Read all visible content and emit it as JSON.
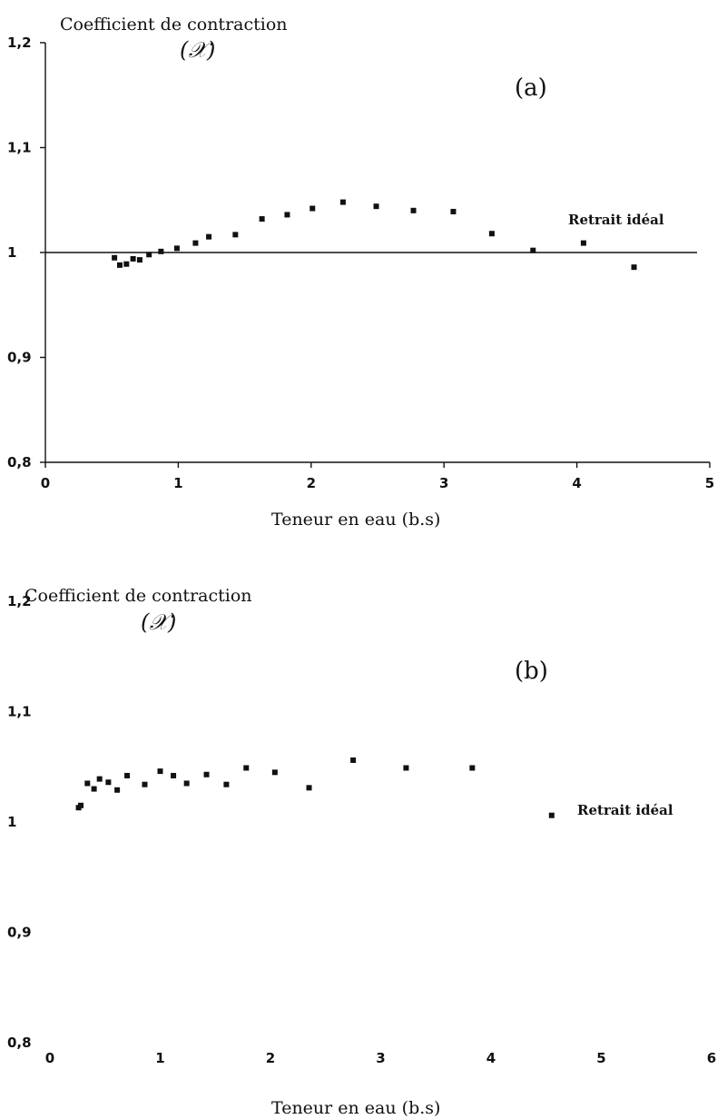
{
  "chart_data": [
    {
      "type": "scatter",
      "panel_label": "(a)",
      "ylabel": "Coefficient de contraction",
      "ylabel_symbol": "(𝒳)",
      "xlabel": "Teneur en eau (b.s)",
      "xlim": [
        0,
        5
      ],
      "ylim": [
        0.8,
        1.2
      ],
      "x_ticks": [
        0,
        1,
        2,
        3,
        4,
        5
      ],
      "x_tick_labels": [
        "0",
        "1",
        "2",
        "3",
        "4",
        "5"
      ],
      "y_ticks": [
        0.8,
        0.9,
        1.0,
        1.1,
        1.2
      ],
      "y_tick_labels": [
        "0,8",
        "0,9",
        "1",
        "1,1",
        "1,2"
      ],
      "reference_line": {
        "y": 1.0,
        "label": "Retrait idéal"
      },
      "axes_visible": true,
      "grid": false,
      "points": [
        {
          "x": 0.52,
          "y": 0.995
        },
        {
          "x": 0.56,
          "y": 0.988
        },
        {
          "x": 0.61,
          "y": 0.989
        },
        {
          "x": 0.66,
          "y": 0.994
        },
        {
          "x": 0.71,
          "y": 0.993
        },
        {
          "x": 0.78,
          "y": 0.998
        },
        {
          "x": 0.87,
          "y": 1.001
        },
        {
          "x": 0.99,
          "y": 1.004
        },
        {
          "x": 1.13,
          "y": 1.009
        },
        {
          "x": 1.23,
          "y": 1.015
        },
        {
          "x": 1.43,
          "y": 1.017
        },
        {
          "x": 1.63,
          "y": 1.032
        },
        {
          "x": 1.82,
          "y": 1.036
        },
        {
          "x": 2.01,
          "y": 1.042
        },
        {
          "x": 2.24,
          "y": 1.048
        },
        {
          "x": 2.49,
          "y": 1.044
        },
        {
          "x": 2.77,
          "y": 1.04
        },
        {
          "x": 3.07,
          "y": 1.039
        },
        {
          "x": 3.36,
          "y": 1.018
        },
        {
          "x": 3.67,
          "y": 1.002
        },
        {
          "x": 4.05,
          "y": 1.009
        },
        {
          "x": 4.43,
          "y": 0.986
        }
      ]
    },
    {
      "type": "scatter",
      "panel_label": "(b)",
      "ylabel": "Coefficient de contraction",
      "ylabel_symbol": "(𝒳)",
      "xlabel": "Teneur en eau (b.s)",
      "xlim": [
        0,
        6
      ],
      "ylim": [
        0.8,
        1.2
      ],
      "x_ticks": [
        0,
        1,
        2,
        3,
        4,
        5,
        6
      ],
      "x_tick_labels": [
        "0",
        "1",
        "2",
        "3",
        "4",
        "5",
        "6"
      ],
      "y_ticks": [
        0.8,
        0.9,
        1.0,
        1.1,
        1.2
      ],
      "y_tick_labels": [
        "0,8",
        "0,9",
        "1",
        "1,1",
        "1,2"
      ],
      "reference_line": {
        "y": 1.0,
        "label": "Retrait idéal"
      },
      "axes_visible": false,
      "grid": false,
      "points": [
        {
          "x": 0.26,
          "y": 1.013
        },
        {
          "x": 0.28,
          "y": 1.015
        },
        {
          "x": 0.34,
          "y": 1.035
        },
        {
          "x": 0.4,
          "y": 1.03
        },
        {
          "x": 0.45,
          "y": 1.039
        },
        {
          "x": 0.53,
          "y": 1.036
        },
        {
          "x": 0.61,
          "y": 1.029
        },
        {
          "x": 0.7,
          "y": 1.042
        },
        {
          "x": 0.86,
          "y": 1.034
        },
        {
          "x": 1.0,
          "y": 1.046
        },
        {
          "x": 1.12,
          "y": 1.042
        },
        {
          "x": 1.24,
          "y": 1.035
        },
        {
          "x": 1.42,
          "y": 1.043
        },
        {
          "x": 1.6,
          "y": 1.034
        },
        {
          "x": 1.78,
          "y": 1.049
        },
        {
          "x": 2.04,
          "y": 1.045
        },
        {
          "x": 2.35,
          "y": 1.031
        },
        {
          "x": 2.75,
          "y": 1.056
        },
        {
          "x": 3.23,
          "y": 1.049
        },
        {
          "x": 3.83,
          "y": 1.049
        },
        {
          "x": 4.55,
          "y": 1.006
        }
      ]
    }
  ]
}
